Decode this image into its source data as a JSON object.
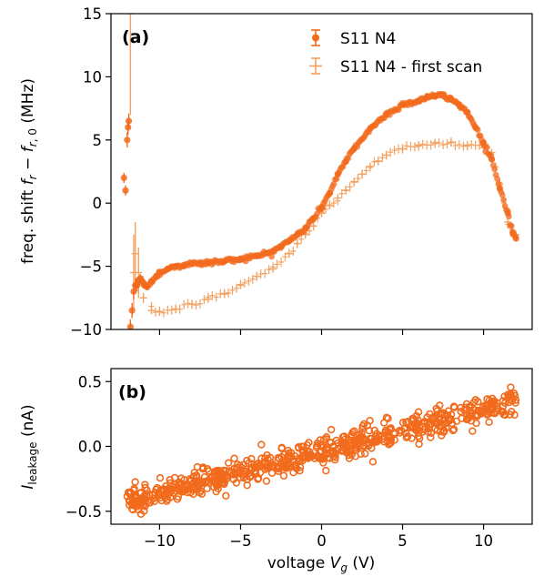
{
  "colors": {
    "series_a": "#f26b1d",
    "series_b": "#f4a262",
    "axis": "#000000"
  },
  "chart_data": [
    {
      "type": "scatter",
      "panel_label": "(a)",
      "xlabel": "",
      "ylabel": "freq. shift f_r − f_r,0 (MHz)",
      "xlim": [
        -13,
        13
      ],
      "ylim": [
        -10,
        15
      ],
      "xticks": [
        -10,
        -5,
        0,
        5,
        10
      ],
      "yticks": [
        -10,
        -5,
        0,
        5,
        10,
        15
      ],
      "ytick_labels": [
        "−10",
        "−5",
        "0",
        "5",
        "10",
        "15"
      ],
      "xticks_labeled": false,
      "grid": false,
      "legend_placement": "top-right",
      "series": [
        {
          "name": "S11 N4",
          "marker": "circle",
          "error_bars": true,
          "x": [
            -12.2,
            -12.1,
            -12.0,
            -11.95,
            -11.9,
            -11.8,
            -11.7,
            -11.6,
            -11.5,
            -11.4,
            -11.3,
            -11.2,
            -11.0,
            -10.8,
            -10.5,
            -10.2,
            -10.0,
            -9.5,
            -9.0,
            -8.5,
            -8.0,
            -7.5,
            -7.0,
            -6.0,
            -5.0,
            -4.0,
            -3.0,
            -2.5,
            -2.0,
            -1.5,
            -1.0,
            -0.5,
            0.0,
            0.5,
            1.0,
            1.5,
            2.0,
            3.0,
            4.0,
            5.0,
            6.0,
            6.5,
            7.0,
            7.5,
            8.0,
            8.5,
            9.0,
            9.5,
            10.0,
            10.5,
            11.0,
            11.5,
            11.8,
            12.0
          ],
          "y": [
            2.0,
            1.0,
            5.0,
            6.0,
            6.5,
            -9.8,
            -8.5,
            -7.0,
            -6.5,
            -6.5,
            -6.2,
            -6.0,
            -6.3,
            -6.6,
            -6.2,
            -5.8,
            -5.5,
            -5.2,
            -5.0,
            -4.9,
            -4.8,
            -4.8,
            -4.7,
            -4.6,
            -4.4,
            -4.2,
            -3.8,
            -3.4,
            -3.0,
            -2.5,
            -2.0,
            -1.2,
            -0.3,
            0.8,
            2.3,
            3.3,
            4.3,
            5.9,
            7.0,
            7.8,
            8.1,
            8.4,
            8.5,
            8.5,
            8.2,
            7.8,
            7.2,
            6.0,
            4.8,
            3.5,
            1.2,
            -0.8,
            -2.3,
            -2.8
          ],
          "yerr": [
            0.4,
            0.4,
            0.6,
            0.6,
            0.6,
            0.6,
            0.6,
            0.6,
            0.5,
            0.5,
            0.4,
            0.4,
            0.3,
            0.3,
            0.2,
            0.2,
            0.2,
            0.2,
            0.2,
            0.2,
            0.2,
            0.2,
            0.2,
            0.2,
            0.2,
            0.2,
            0.2,
            0.2,
            0.2,
            0.2,
            0.2,
            0.2,
            0.2,
            0.2,
            0.2,
            0.2,
            0.2,
            0.2,
            0.2,
            0.2,
            0.2,
            0.2,
            0.2,
            0.2,
            0.2,
            0.2,
            0.2,
            0.2,
            0.2,
            0.2,
            0.2,
            0.2,
            0.2,
            0.2
          ]
        },
        {
          "name": "S11 N4 - first scan",
          "marker": "none",
          "error_bars": true,
          "x": [
            -11.8,
            -11.6,
            -11.5,
            -11.3,
            -11.0,
            -10.5,
            -10.0,
            -9.0,
            -8.0,
            -7.0,
            -6.0,
            -5.0,
            -4.0,
            -3.0,
            -2.0,
            -1.5,
            -1.0,
            -0.5,
            0.0,
            0.5,
            1.0,
            1.5,
            2.0,
            2.5,
            3.0,
            3.5,
            4.0,
            5.0,
            6.0,
            7.0,
            8.0,
            9.0,
            10.0,
            10.5,
            11.0,
            11.5,
            12.0
          ],
          "y": [
            15.0,
            -5.5,
            -4.0,
            -5.5,
            -7.5,
            -8.5,
            -8.6,
            -8.4,
            -8.0,
            -7.6,
            -7.2,
            -6.5,
            -5.8,
            -5.2,
            -4.0,
            -3.2,
            -2.5,
            -1.8,
            -0.8,
            -0.2,
            0.4,
            1.0,
            1.7,
            2.3,
            2.9,
            3.3,
            3.8,
            4.3,
            4.6,
            4.8,
            4.8,
            4.6,
            4.4,
            4.0,
            1.5,
            -1.5,
            -2.5
          ],
          "yerr": [
            8.0,
            3.0,
            2.5,
            2.0,
            0.4,
            0.3,
            0.3,
            0.3,
            0.3,
            0.3,
            0.3,
            0.3,
            0.3,
            0.3,
            0.3,
            0.3,
            0.3,
            0.3,
            0.3,
            0.3,
            0.3,
            0.3,
            0.3,
            0.3,
            0.3,
            0.3,
            0.3,
            0.3,
            0.3,
            0.3,
            0.3,
            0.3,
            0.3,
            0.3,
            0.3,
            0.3,
            0.3
          ]
        }
      ]
    },
    {
      "type": "scatter",
      "panel_label": "(b)",
      "xlabel": "voltage V_g (V)",
      "ylabel": "I_leakage (nA)",
      "xlim": [
        -13,
        13
      ],
      "ylim": [
        -0.6,
        0.6
      ],
      "xticks": [
        -10,
        -5,
        0,
        5,
        10
      ],
      "xtick_labels": [
        "−10",
        "−5",
        "0",
        "5",
        "10"
      ],
      "yticks": [
        -0.5,
        0.0,
        0.5
      ],
      "ytick_labels": [
        "−0.5",
        "0.0",
        "0.5"
      ],
      "grid": false,
      "series": [
        {
          "name": "",
          "marker": "circle",
          "trend": {
            "x": [
              -12.0,
              12.0
            ],
            "y": [
              -0.43,
              0.35
            ]
          },
          "noise_sd": 0.05,
          "n_points": 700
        }
      ]
    }
  ],
  "legend": {
    "entries": [
      {
        "label": "S11 N4",
        "series": 0
      },
      {
        "label": "S11 N4 - first scan",
        "series": 1
      }
    ]
  },
  "text": {
    "panel_a": "(a)",
    "panel_b": "(b)",
    "ylabel_a_prefix": "freq. shift ",
    "ylabel_a_unit": " (MHz)",
    "ylabel_b_unit": " (nA)",
    "xlabel_prefix": "voltage ",
    "xlabel_unit": " (V)",
    "legend_1": "S11 N4",
    "legend_2": "S11 N4 - first scan"
  }
}
